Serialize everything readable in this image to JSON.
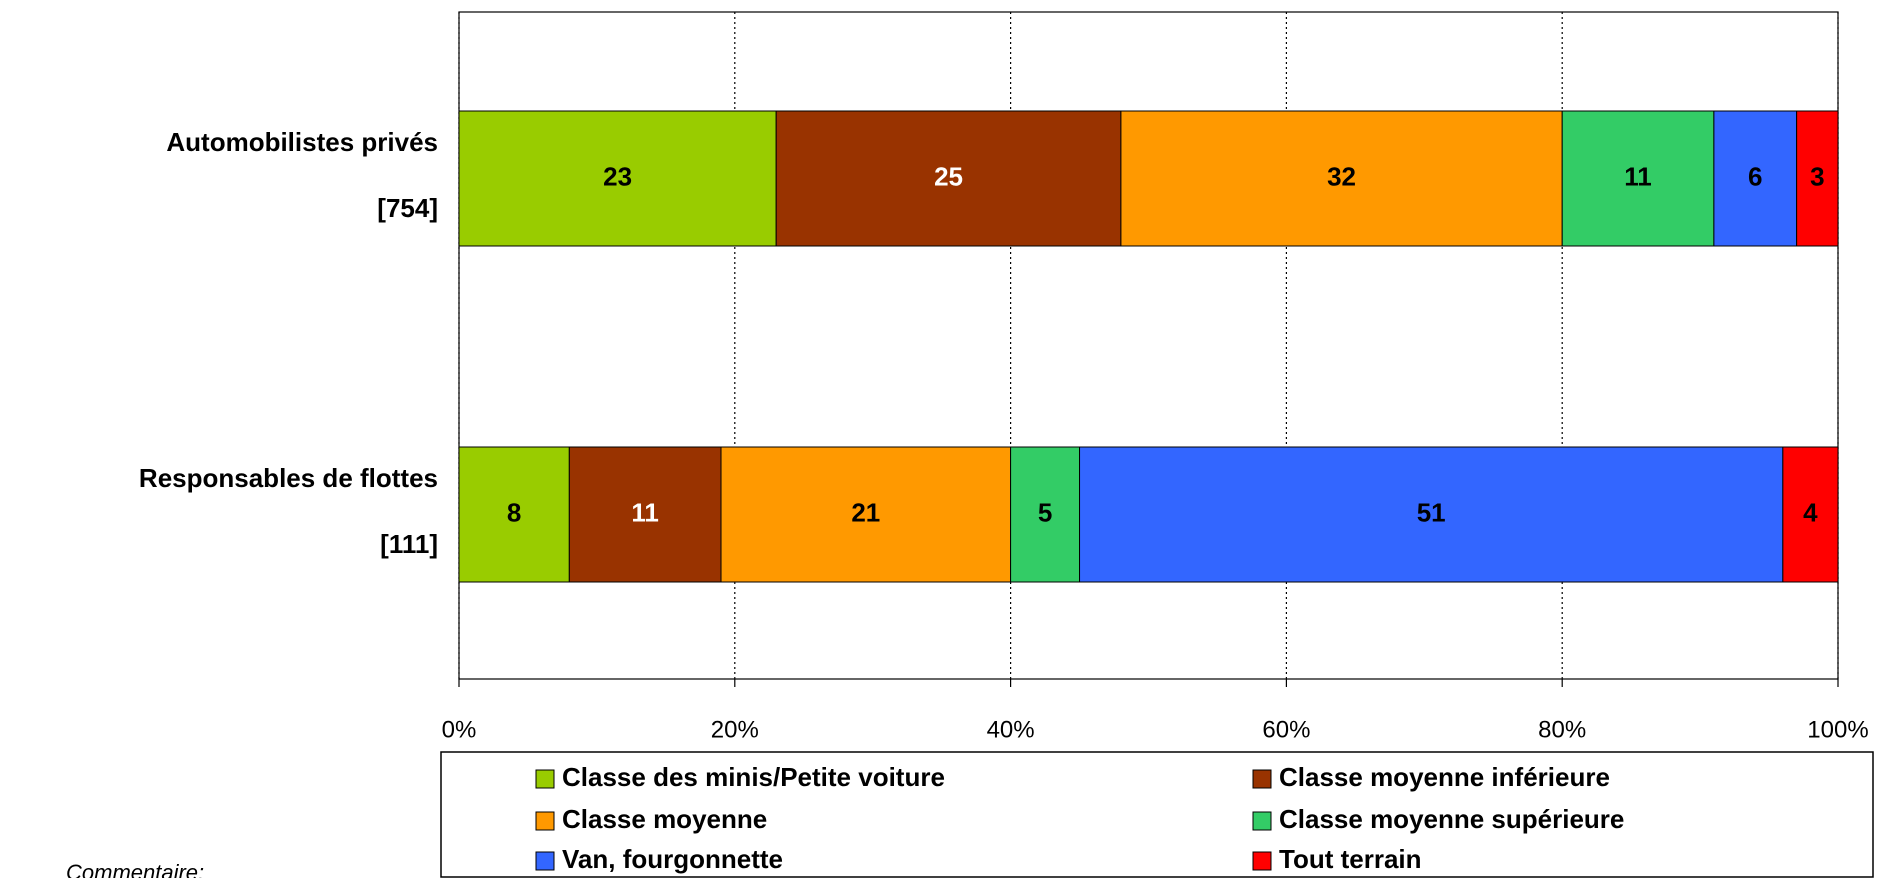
{
  "chart_data": {
    "type": "stacked_barh",
    "categories": [
      "Automobilistes privés",
      "Responsables de flottes"
    ],
    "sample_sizes": [
      "[754]",
      "[111]"
    ],
    "series": [
      {
        "name": "Classe des minis/Petite voiture",
        "color": "#99cc00",
        "label_color": "#000000",
        "values": [
          23,
          8
        ]
      },
      {
        "name": "Classe moyenne inférieure",
        "color": "#993300",
        "label_color": "#ffffff",
        "values": [
          25,
          11
        ]
      },
      {
        "name": "Classe moyenne",
        "color": "#ff9900",
        "label_color": "#000000",
        "values": [
          32,
          21
        ]
      },
      {
        "name": "Classe moyenne supérieure",
        "color": "#33cc66",
        "label_color": "#000000",
        "values": [
          11,
          5
        ]
      },
      {
        "name": "Van, fourgonnette",
        "color": "#3366ff",
        "label_color": "#000000",
        "values": [
          6,
          51
        ]
      },
      {
        "name": "Tout terrain",
        "color": "#ff0000",
        "label_color": "#000000",
        "values": [
          3,
          4
        ]
      }
    ],
    "xlim": [
      0,
      100
    ],
    "xticks": [
      {
        "value": 0,
        "label": "0%"
      },
      {
        "value": 20,
        "label": "20%"
      },
      {
        "value": 40,
        "label": "40%"
      },
      {
        "value": 60,
        "label": "60%"
      },
      {
        "value": 80,
        "label": "80%"
      },
      {
        "value": 100,
        "label": "100%"
      }
    ],
    "grid": true,
    "legend_position": "bottom",
    "annotation": "Commentaire:"
  }
}
